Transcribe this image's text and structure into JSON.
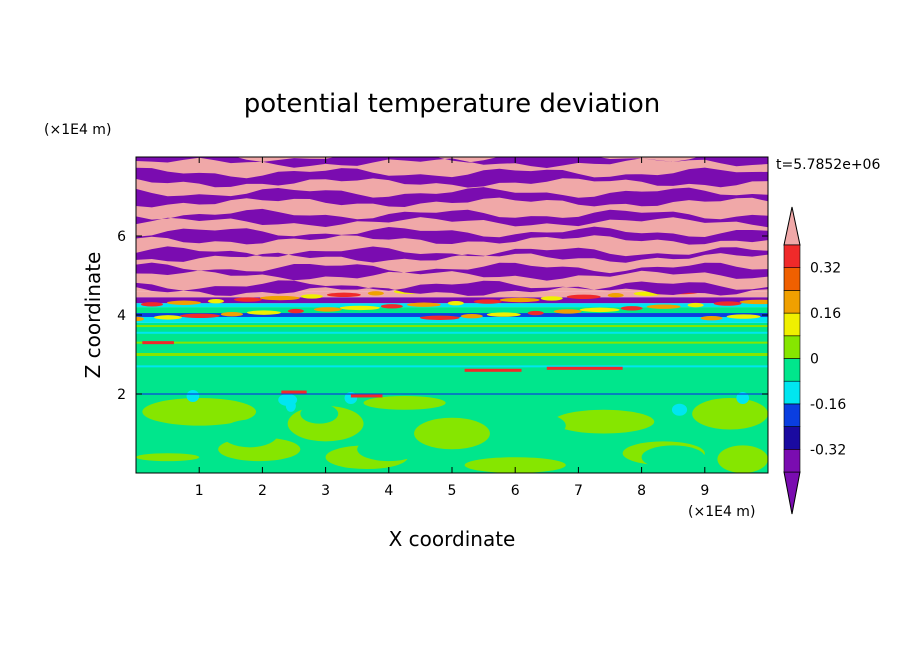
{
  "chart_data": {
    "type": "heatmap",
    "title": "potential temperature deviation",
    "xlabel": "X coordinate",
    "ylabel": "Z coordinate",
    "x_units": "(×1E4 m)",
    "y_units": "(×1E4 m)",
    "time_label": "t=5.7852e+06",
    "xlim": [
      0,
      10
    ],
    "ylim": [
      0,
      8
    ],
    "x_ticks": [
      1,
      2,
      3,
      4,
      5,
      6,
      7,
      8,
      9
    ],
    "y_ticks": [
      2,
      4,
      6
    ],
    "x_tick_labels": [
      "1",
      "2",
      "3",
      "4",
      "5",
      "6",
      "7",
      "8",
      "9"
    ],
    "y_tick_labels": [
      "2",
      "4",
      "6"
    ],
    "colorbar": {
      "tick_labels": [
        "0.32",
        "0.16",
        "0",
        "-0.16",
        "-0.32"
      ],
      "tick_values": [
        0.32,
        0.16,
        0,
        -0.16,
        -0.32
      ],
      "levels": [
        -0.4,
        -0.32,
        -0.24,
        -0.16,
        -0.08,
        0,
        0.08,
        0.16,
        0.24,
        0.32,
        0.4
      ],
      "colors": [
        "#7a0cb0",
        "#1a0aa0",
        "#0a3ee0",
        "#00e6f0",
        "#00e68c",
        "#86e600",
        "#f0f000",
        "#f0a000",
        "#f06000",
        "#f02a2a",
        "#f0a8a8"
      ],
      "extend": "both"
    },
    "regions": [
      {
        "z_range": [
          4.6,
          8.0
        ],
        "description_values": [
          -0.4,
          0.4
        ]
      },
      {
        "z_range": [
          3.8,
          4.6
        ],
        "description_values": [
          -0.4,
          0.4
        ]
      },
      {
        "z_range": [
          2.0,
          3.8
        ],
        "description_values": [
          -0.08,
          0.08
        ]
      },
      {
        "z_range": [
          0.0,
          2.0
        ],
        "description_values": [
          -0.08,
          0.08
        ]
      }
    ]
  },
  "colors": {
    "purple": "#7a0cb0",
    "pink": "#f0a8a8",
    "green": "#00e68c",
    "lime": "#86e600",
    "cyan": "#00e6f0",
    "blue": "#0a3ee0",
    "red": "#f02a2a",
    "orange": "#f0a000",
    "yellow": "#f0f000"
  }
}
